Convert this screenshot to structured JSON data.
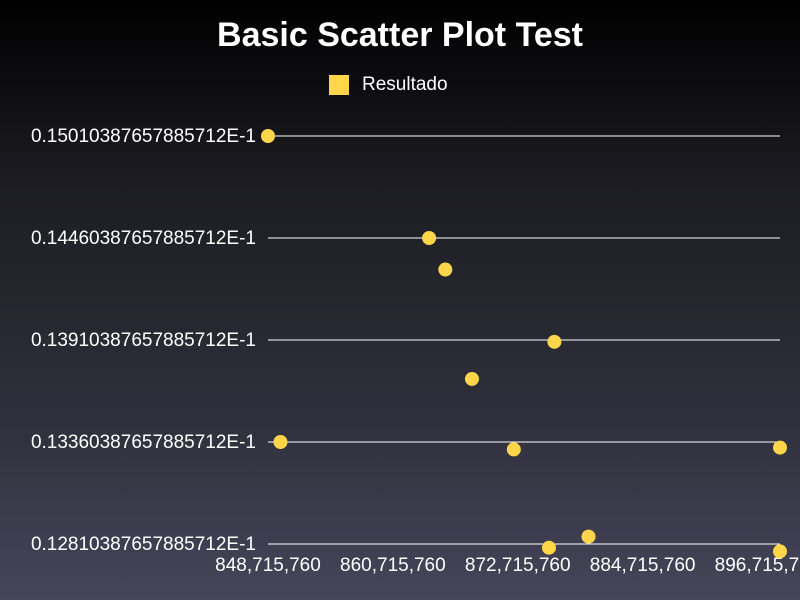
{
  "chart_data": {
    "type": "scatter",
    "title": "Basic Scatter Plot Test",
    "xlabel": "",
    "ylabel": "",
    "legend": {
      "position": "top-center"
    },
    "series": [
      {
        "name": "Resultado",
        "color": "#ffd54a",
        "points": [
          {
            "x": 848715760,
            "y": 0.015010387657885711
          },
          {
            "x": 849915760,
            "y": 0.013360387657885713
          },
          {
            "x": 864195760,
            "y": 0.014460387657885713
          },
          {
            "x": 865755760,
            "y": 0.014290387657885713
          },
          {
            "x": 868315760,
            "y": 0.013700387657885713
          },
          {
            "x": 872335760,
            "y": 0.013320387657885712
          },
          {
            "x": 875715760,
            "y": 0.012790387657885711
          },
          {
            "x": 876235760,
            "y": 0.013900387657885711
          },
          {
            "x": 879515760,
            "y": 0.012850387657885712
          },
          {
            "x": 898115760,
            "y": 0.012770387657885712
          },
          {
            "x": 898595760,
            "y": 0.013330387657885712
          }
        ]
      }
    ],
    "xlim": [
      848715760,
      897915760
    ],
    "ylim": [
      0.012810387657885712,
      0.015010387657885711
    ],
    "x_ticks": [
      {
        "value": 848715760,
        "label": "848,715,760"
      },
      {
        "value": 860715760,
        "label": "860,715,760"
      },
      {
        "value": 872715760,
        "label": "872,715,760"
      },
      {
        "value": 884715760,
        "label": "884,715,760"
      },
      {
        "value": 896715760,
        "label": "896,715,760"
      }
    ],
    "y_ticks": [
      {
        "value": 0.015010387657885711,
        "label": "0.15010387657885712E-1"
      },
      {
        "value": 0.014460387657885713,
        "label": "0.14460387657885712E-1"
      },
      {
        "value": 0.013910387657885713,
        "label": "0.13910387657885712E-1"
      },
      {
        "value": 0.013360387657885713,
        "label": "0.13360387657885712E-1"
      },
      {
        "value": 0.012810387657885712,
        "label": "0.12810387657885712E-1"
      }
    ],
    "grid": true
  }
}
